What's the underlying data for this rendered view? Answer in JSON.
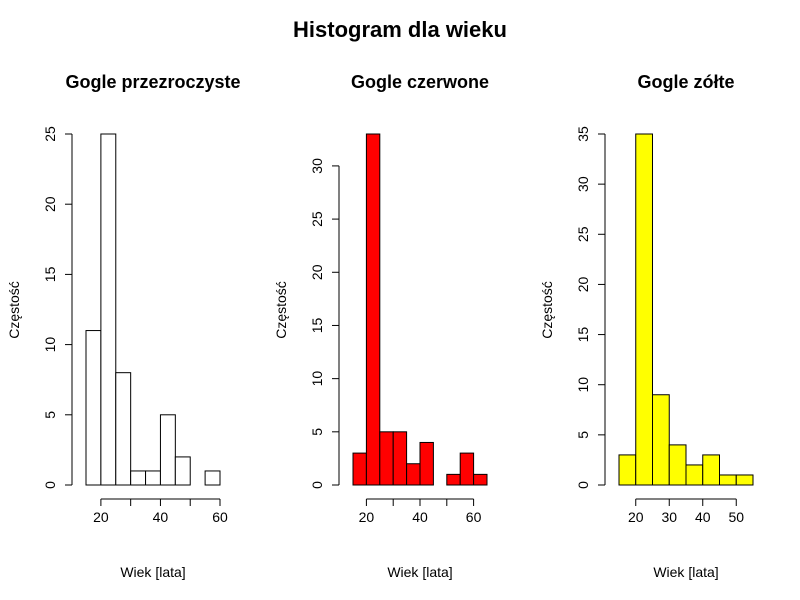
{
  "title": "Histogram dla wieku",
  "chart_data": [
    {
      "type": "bar",
      "title": "Gogle przezroczyste",
      "xlabel": "Wiek [lata]",
      "ylabel": "Częstość",
      "color": "#ffffff",
      "bin_edges": [
        15,
        20,
        25,
        30,
        35,
        40,
        45,
        50,
        55,
        60
      ],
      "values": [
        11,
        25,
        8,
        1,
        1,
        5,
        2,
        0,
        1
      ],
      "xlim": [
        15,
        60
      ],
      "ylim": [
        0,
        25
      ],
      "xticks": [
        20,
        40,
        60
      ],
      "yticks": [
        0,
        5,
        10,
        15,
        20,
        25
      ]
    },
    {
      "type": "bar",
      "title": "Gogle czerwone",
      "xlabel": "Wiek [lata]",
      "ylabel": "Częstość",
      "color": "#ff0000",
      "bin_edges": [
        15,
        20,
        25,
        30,
        35,
        40,
        45,
        50,
        55,
        60,
        65
      ],
      "values": [
        3,
        33,
        5,
        5,
        2,
        4,
        0,
        1,
        3,
        1
      ],
      "xlim": [
        15,
        65
      ],
      "ylim": [
        0,
        33
      ],
      "xticks": [
        20,
        40,
        60
      ],
      "yticks": [
        0,
        5,
        10,
        15,
        20,
        25,
        30
      ]
    },
    {
      "type": "bar",
      "title": "Gogle zółte",
      "xlabel": "Wiek [lata]",
      "ylabel": "Częstość",
      "color": "#ffff00",
      "bin_edges": [
        15,
        20,
        25,
        30,
        35,
        40,
        45,
        50,
        55
      ],
      "values": [
        3,
        35,
        9,
        4,
        2,
        3,
        1,
        1
      ],
      "xlim": [
        15,
        55
      ],
      "ylim": [
        0,
        35
      ],
      "xticks": [
        20,
        30,
        40,
        50
      ],
      "yticks": [
        0,
        5,
        10,
        15,
        20,
        25,
        30,
        35
      ]
    }
  ]
}
